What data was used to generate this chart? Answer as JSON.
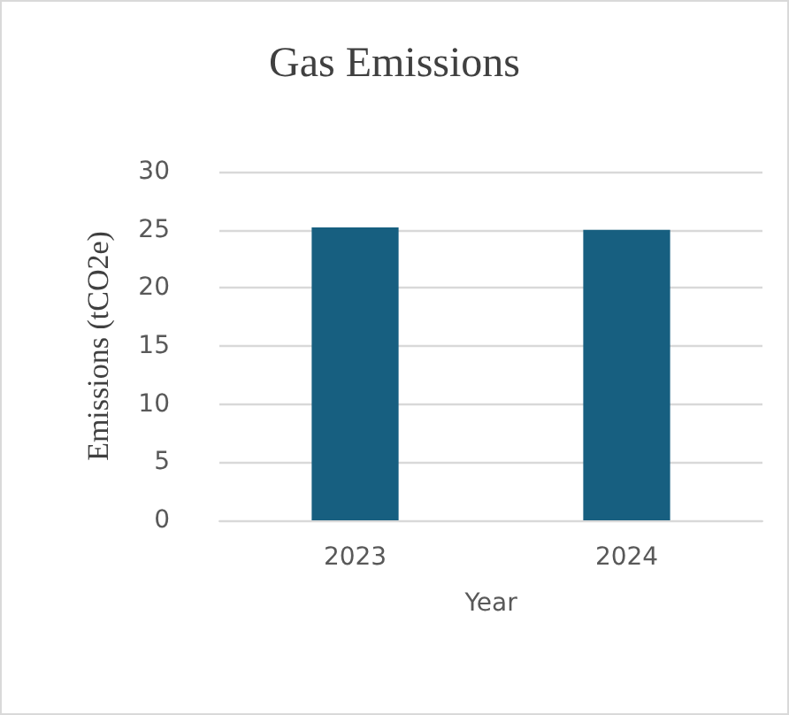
{
  "chart_data": {
    "type": "bar",
    "title": "Gas Emissions",
    "xlabel": "Year",
    "ylabel": "Emissions (tCO2e)",
    "categories": [
      "2023",
      "2024"
    ],
    "series": [
      {
        "color": "#175f80",
        "values": [
          25.2,
          25.0
        ]
      }
    ],
    "ylim": [
      0,
      30
    ],
    "yticks": [
      0,
      5,
      10,
      15,
      20,
      25,
      30
    ],
    "grid": "y"
  }
}
